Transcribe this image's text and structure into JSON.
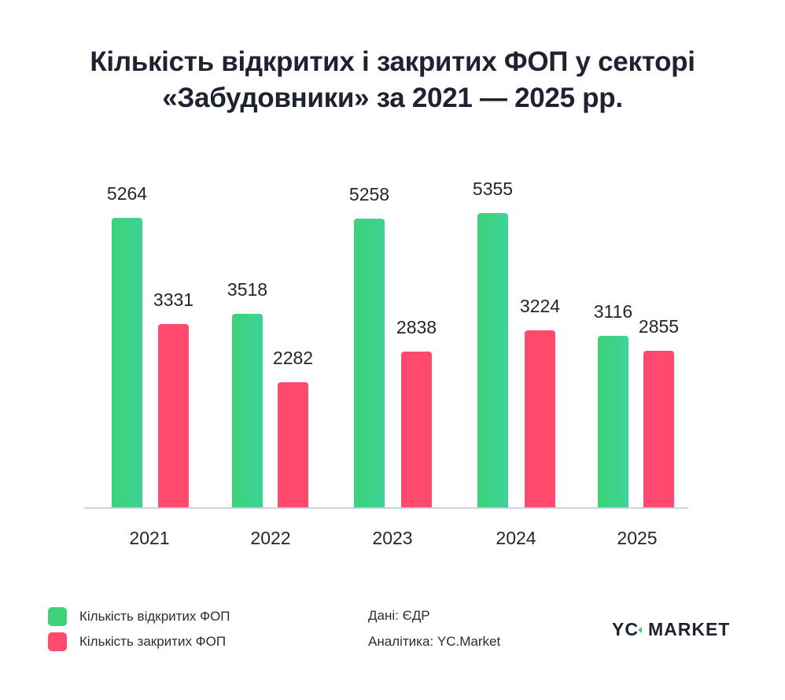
{
  "title": {
    "line1": "Кількість відкритих і закритих ФОП у секторі",
    "line2": "«Забудовники» за 2021 — 2025 рр."
  },
  "colors": {
    "open": "#3dd27a",
    "closed": "#ff4a6e",
    "axis": "#cdd2de",
    "text": "#23262f"
  },
  "legend": {
    "open_label": "Кількість відкритих ФОП",
    "closed_label": "Кількість закритих ФОП"
  },
  "source": {
    "data": "Дані: ЄДР",
    "analytics": "Аналітика: YC.Market"
  },
  "logo": {
    "left": "YC",
    "right": "MARKET"
  },
  "chart_data": {
    "type": "bar",
    "title": "Кількість відкритих і закритих ФОП у секторі «Забудовники» за 2021 — 2025 рр.",
    "xlabel": "",
    "ylabel": "",
    "categories": [
      "2021",
      "2022",
      "2023",
      "2024",
      "2025"
    ],
    "series": [
      {
        "name": "Кількість відкритих ФОП",
        "color": "#3dd27a",
        "values": [
          5264,
          3518,
          5258,
          5355,
          3116
        ]
      },
      {
        "name": "Кількість закритих ФОП",
        "color": "#ff4a6e",
        "values": [
          3331,
          2282,
          2838,
          3224,
          2855
        ]
      }
    ],
    "ylim": [
      0,
      5355
    ],
    "grid": false,
    "data_labels": true,
    "legend_position": "bottom-left"
  },
  "labels": {
    "open": [
      "5264",
      "3518",
      "5258",
      "5355",
      "3116"
    ],
    "closed": [
      "3331",
      "2282",
      "2838",
      "3224",
      "2855"
    ],
    "years": [
      "2021",
      "2022",
      "2023",
      "2024",
      "2025"
    ]
  }
}
